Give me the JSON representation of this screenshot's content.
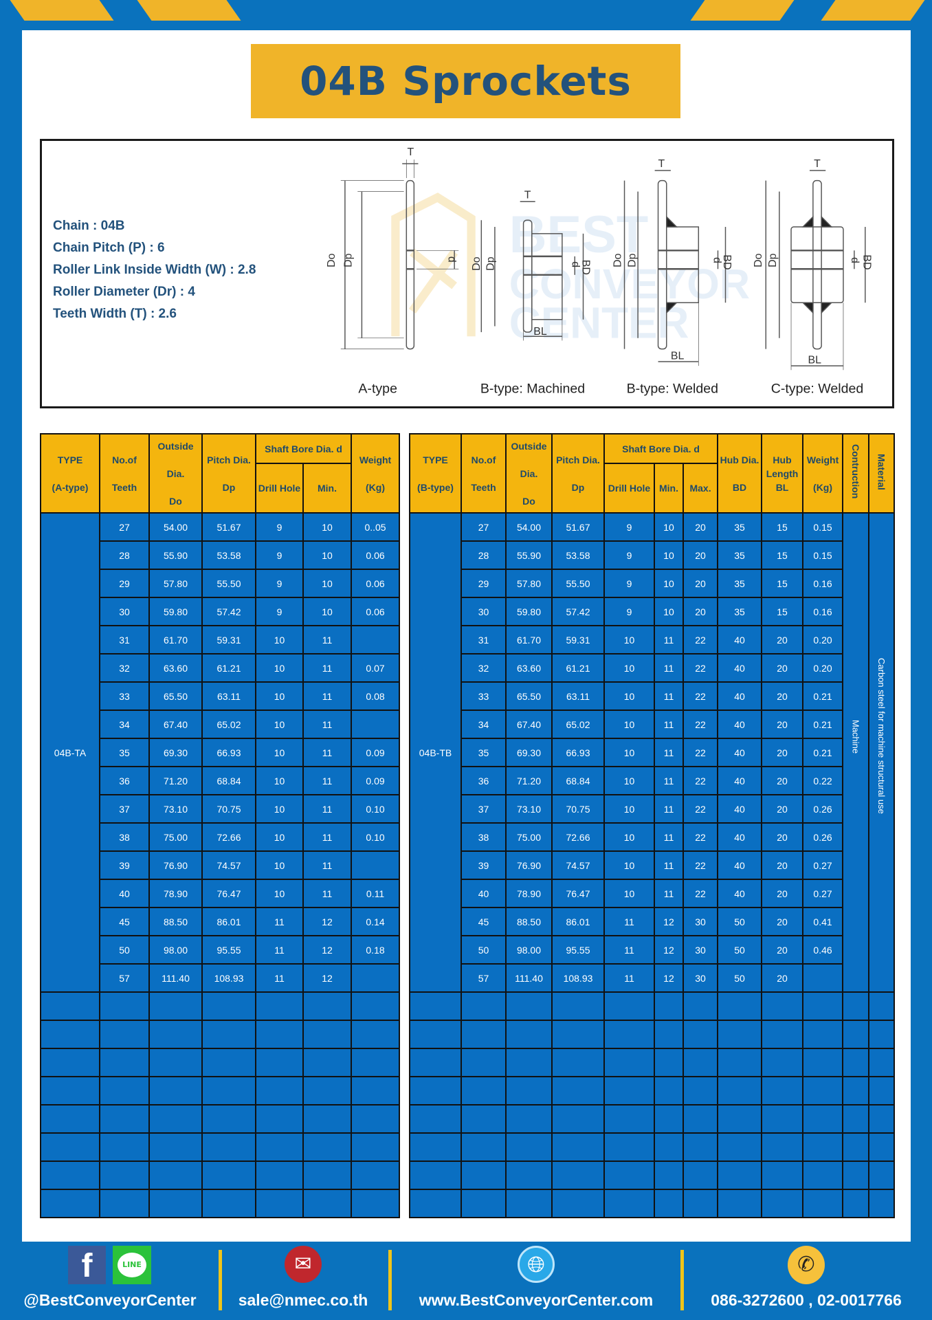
{
  "title": "04B Sprockets",
  "colors": {
    "brand_blue": "#0a72bd",
    "accent_yellow": "#f0b429",
    "text_navy": "#23527c",
    "table_body": "#0a6fc2"
  },
  "specs": [
    "Chain  : 04B",
    "Chain Pitch (P)  :  6",
    "Roller Link Inside Width (W)  :  2.8",
    "Roller Diameter (Dr)  : 4",
    "Teeth Width (T)  :  2.6"
  ],
  "diagram": {
    "labels": {
      "T": "T",
      "Do": "Do",
      "Dp": "Dp",
      "d": "d",
      "BD": "BD",
      "BL": "BL"
    },
    "captions": [
      "A-type",
      "B-type: Machined",
      "B-type: Welded",
      "C-type: Welded"
    ],
    "watermark": [
      "BEST",
      "CONVEYOR",
      "CENTER"
    ]
  },
  "table_a": {
    "headers": {
      "type": [
        "TYPE",
        "(A-type)"
      ],
      "teeth": [
        "No.of",
        "Teeth"
      ],
      "outside": [
        "Outside",
        "Dia.",
        "Do"
      ],
      "pitch": [
        "Pitch Dia.",
        "Dp"
      ],
      "bore": "Shaft Bore Dia. d",
      "drill": "Drill Hole",
      "min": "Min.",
      "weight": [
        "Weight",
        "(Kg)"
      ]
    },
    "type_value": "04B-TA",
    "rows": [
      [
        "27",
        "54.00",
        "51.67",
        "9",
        "10",
        "0..05"
      ],
      [
        "28",
        "55.90",
        "53.58",
        "9",
        "10",
        "0.06"
      ],
      [
        "29",
        "57.80",
        "55.50",
        "9",
        "10",
        "0.06"
      ],
      [
        "30",
        "59.80",
        "57.42",
        "9",
        "10",
        "0.06"
      ],
      [
        "31",
        "61.70",
        "59.31",
        "10",
        "11",
        ""
      ],
      [
        "32",
        "63.60",
        "61.21",
        "10",
        "11",
        "0.07"
      ],
      [
        "33",
        "65.50",
        "63.11",
        "10",
        "11",
        "0.08"
      ],
      [
        "34",
        "67.40",
        "65.02",
        "10",
        "11",
        ""
      ],
      [
        "35",
        "69.30",
        "66.93",
        "10",
        "11",
        "0.09"
      ],
      [
        "36",
        "71.20",
        "68.84",
        "10",
        "11",
        "0.09"
      ],
      [
        "37",
        "73.10",
        "70.75",
        "10",
        "11",
        "0.10"
      ],
      [
        "38",
        "75.00",
        "72.66",
        "10",
        "11",
        "0.10"
      ],
      [
        "39",
        "76.90",
        "74.57",
        "10",
        "11",
        ""
      ],
      [
        "40",
        "78.90",
        "76.47",
        "10",
        "11",
        "0.11"
      ],
      [
        "45",
        "88.50",
        "86.01",
        "11",
        "12",
        "0.14"
      ],
      [
        "50",
        "98.00",
        "95.55",
        "11",
        "12",
        "0.18"
      ],
      [
        "57",
        "111.40",
        "108.93",
        "11",
        "12",
        ""
      ]
    ]
  },
  "table_b": {
    "headers": {
      "type": [
        "TYPE",
        "(B-type)"
      ],
      "teeth": [
        "No.of",
        "Teeth"
      ],
      "outside": [
        "Outside",
        "Dia.",
        "Do"
      ],
      "pitch": [
        "Pitch Dia.",
        "Dp"
      ],
      "bore": "Shaft Bore Dia. d",
      "drill": "Drill Hole",
      "min": "Min.",
      "max": "Max.",
      "hub_dia": [
        "Hub Dia.",
        "BD"
      ],
      "hub_len": [
        "Hub",
        "Length",
        "BL"
      ],
      "weight": [
        "Weight",
        "(Kg)"
      ],
      "construction": "Contruction",
      "material": "Material"
    },
    "type_value": "04B-TB",
    "construction_value": "Machine",
    "material_value": "Carbon steel for machine structural use",
    "rows": [
      [
        "27",
        "54.00",
        "51.67",
        "9",
        "10",
        "20",
        "35",
        "15",
        "0.15"
      ],
      [
        "28",
        "55.90",
        "53.58",
        "9",
        "10",
        "20",
        "35",
        "15",
        "0.15"
      ],
      [
        "29",
        "57.80",
        "55.50",
        "9",
        "10",
        "20",
        "35",
        "15",
        "0.16"
      ],
      [
        "30",
        "59.80",
        "57.42",
        "9",
        "10",
        "20",
        "35",
        "15",
        "0.16"
      ],
      [
        "31",
        "61.70",
        "59.31",
        "10",
        "11",
        "22",
        "40",
        "20",
        "0.20"
      ],
      [
        "32",
        "63.60",
        "61.21",
        "10",
        "11",
        "22",
        "40",
        "20",
        "0.20"
      ],
      [
        "33",
        "65.50",
        "63.11",
        "10",
        "11",
        "22",
        "40",
        "20",
        "0.21"
      ],
      [
        "34",
        "67.40",
        "65.02",
        "10",
        "11",
        "22",
        "40",
        "20",
        "0.21"
      ],
      [
        "35",
        "69.30",
        "66.93",
        "10",
        "11",
        "22",
        "40",
        "20",
        "0.21"
      ],
      [
        "36",
        "71.20",
        "68.84",
        "10",
        "11",
        "22",
        "40",
        "20",
        "0.22"
      ],
      [
        "37",
        "73.10",
        "70.75",
        "10",
        "11",
        "22",
        "40",
        "20",
        "0.26"
      ],
      [
        "38",
        "75.00",
        "72.66",
        "10",
        "11",
        "22",
        "40",
        "20",
        "0.26"
      ],
      [
        "39",
        "76.90",
        "74.57",
        "10",
        "11",
        "22",
        "40",
        "20",
        "0.27"
      ],
      [
        "40",
        "78.90",
        "76.47",
        "10",
        "11",
        "22",
        "40",
        "20",
        "0.27"
      ],
      [
        "45",
        "88.50",
        "86.01",
        "11",
        "12",
        "30",
        "50",
        "20",
        "0.41"
      ],
      [
        "50",
        "98.00",
        "95.55",
        "11",
        "12",
        "30",
        "50",
        "20",
        "0.46"
      ],
      [
        "57",
        "111.40",
        "108.93",
        "11",
        "12",
        "30",
        "50",
        "20",
        ""
      ]
    ]
  },
  "footer": {
    "social": "@BestConveyorCenter",
    "line_badge": "LINE",
    "email": "sale@nmec.co.th",
    "website": "www.BestConveyorCenter.com",
    "phone": "086-3272600 , 02-0017766",
    "icons": [
      "facebook-icon",
      "line-icon",
      "email-icon",
      "globe-icon",
      "phone-icon"
    ]
  }
}
